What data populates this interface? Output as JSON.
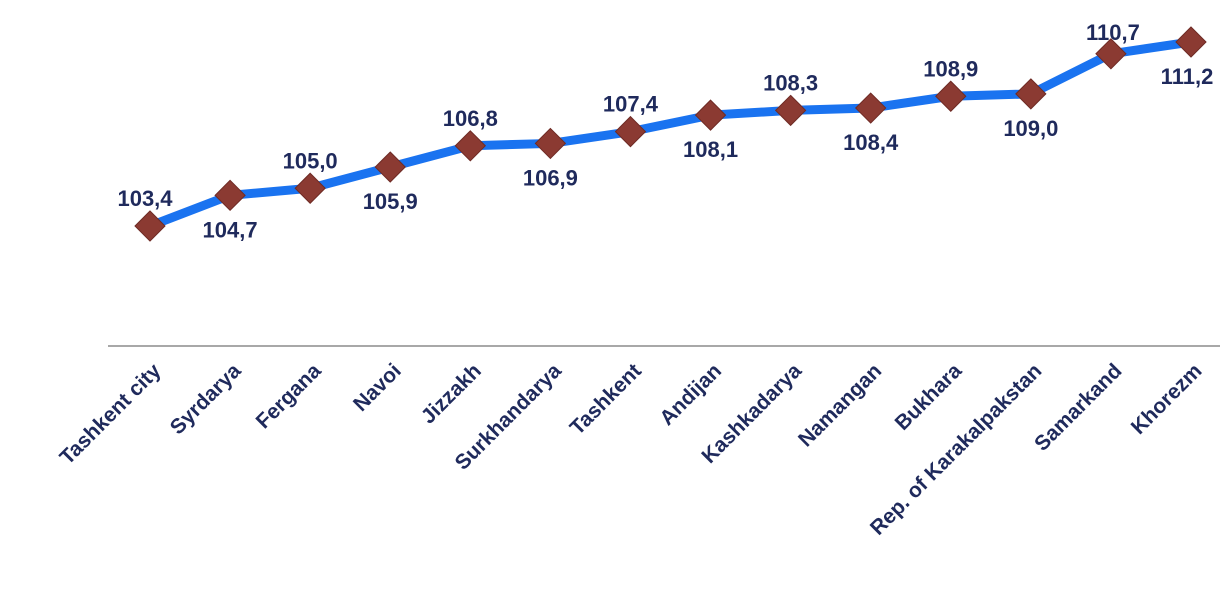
{
  "chart_data": {
    "type": "line",
    "categories": [
      "Tashkent city",
      "Syrdarya",
      "Fergana",
      "Navoi",
      "Jizzakh",
      "Surkhandarya",
      "Tashkent",
      "Andijan",
      "Kashkadarya",
      "Namangan",
      "Bukhara",
      "Rep. of Karakalpakstan",
      "Samarkand",
      "Khorezm"
    ],
    "series": [
      {
        "labels": [
          "103,4",
          "104,7",
          "105,0",
          "105,9",
          "106,8",
          "106,9",
          "107,4",
          "108,1",
          "108,3",
          "108,4",
          "108,9",
          "109,0",
          "110,7",
          "111,2"
        ],
        "values": [
          103.4,
          104.7,
          105.0,
          105.9,
          106.8,
          106.9,
          107.4,
          108.1,
          108.3,
          108.4,
          108.9,
          109.0,
          110.7,
          111.2
        ]
      }
    ],
    "legend": false,
    "grid": false,
    "colors": {
      "line": "#1a73f0",
      "marker": "#8b3a32",
      "marker_stroke": "#6e2a24",
      "text": "#1f2a5c",
      "axis": "#8c8c8c"
    }
  }
}
